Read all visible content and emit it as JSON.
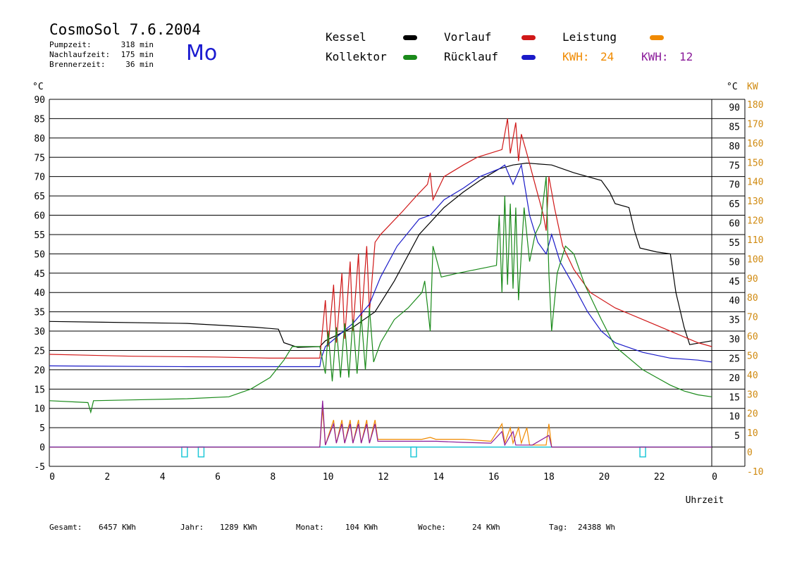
{
  "header": {
    "title": "CosmoSol 7.6.2004",
    "day": "Mo",
    "stats": [
      {
        "label": "Pumpzeit:",
        "value": "318 min"
      },
      {
        "label": "Nachlaufzeit:",
        "value": "175 min"
      },
      {
        "label": "Brennerzeit:",
        "value": "36 min"
      }
    ]
  },
  "legend": {
    "kessel": "Kessel",
    "vorlauf": "Vorlauf",
    "leistung": "Leistung",
    "kollektor": "Kollektor",
    "ruecklauf": "Rücklauf",
    "kwh_orange_label": "KWH:",
    "kwh_orange_value": "24",
    "kwh_purple_label": "KWH:",
    "kwh_purple_value": "12"
  },
  "totals": [
    {
      "label": "Gesamt:",
      "value": "6457 KWh"
    },
    {
      "label": "Jahr:",
      "value": "1289 KWh"
    },
    {
      "label": "Monat:",
      "value": "104 KWh"
    },
    {
      "label": "Woche:",
      "value": "24 KWh"
    },
    {
      "label": "Tag:",
      "value": "24388 Wh"
    }
  ],
  "colors": {
    "kessel": "#000000",
    "vorlauf": "#d01818",
    "ruecklauf": "#1a1ac8",
    "kollektor": "#1a8a1a",
    "leistung": "#f08a00",
    "leistung2": "#8a1a9a",
    "pump": "#20c8d8",
    "kw_axis": "#d08a10"
  },
  "chart_data": {
    "type": "line",
    "title": "CosmoSol 7.6.2004",
    "xlabel": "Uhrzeit",
    "ylabel_left": "°C",
    "ylabel_right": [
      "°C",
      "KW"
    ],
    "xlim": [
      0,
      24
    ],
    "ylim": [
      -5,
      90
    ],
    "y2lim": [
      -10,
      180
    ],
    "grid": true,
    "x_ticks": [
      "0",
      "2",
      "4",
      "6",
      "8",
      "10",
      "12",
      "14",
      "16",
      "18",
      "20",
      "22",
      "0"
    ],
    "y_ticks_left": [
      "90",
      "85",
      "80",
      "75",
      "70",
      "65",
      "60",
      "55",
      "50",
      "45",
      "40",
      "35",
      "30",
      "25",
      "20",
      "15",
      "10",
      "5",
      "0",
      "-5"
    ],
    "y_ticks_right_c": [
      "90",
      "85",
      "80",
      "75",
      "70",
      "65",
      "60",
      "55",
      "50",
      "45",
      "40",
      "35",
      "30",
      "25",
      "20",
      "15",
      "10",
      "5"
    ],
    "y_ticks_right_kw": [
      "180",
      "170",
      "160",
      "150",
      "140",
      "130",
      "120",
      "110",
      "100",
      "90",
      "80",
      "70",
      "60",
      "50",
      "40",
      "30",
      "20",
      "10",
      "0",
      "-10"
    ],
    "series": [
      {
        "name": "Kessel",
        "color": "#000000",
        "points": [
          [
            0,
            32.5
          ],
          [
            5,
            32
          ],
          [
            7.5,
            31
          ],
          [
            8.3,
            30.5
          ],
          [
            8.5,
            27
          ],
          [
            9,
            25.8
          ],
          [
            9.8,
            26
          ],
          [
            10,
            27.5
          ],
          [
            11,
            31
          ],
          [
            11.8,
            35
          ],
          [
            12.5,
            43
          ],
          [
            13.4,
            55
          ],
          [
            14.3,
            62
          ],
          [
            15,
            66
          ],
          [
            15.6,
            69
          ],
          [
            16.3,
            72
          ],
          [
            16.8,
            73
          ],
          [
            17.3,
            73.5
          ],
          [
            18.2,
            73
          ],
          [
            19,
            71
          ],
          [
            20,
            69
          ],
          [
            20.3,
            66
          ],
          [
            20.5,
            63
          ],
          [
            21,
            62
          ],
          [
            21.2,
            56
          ],
          [
            21.4,
            51.5
          ],
          [
            22,
            50.5
          ],
          [
            22.5,
            50
          ],
          [
            22.7,
            40
          ],
          [
            23,
            31
          ],
          [
            23.2,
            26.5
          ],
          [
            24,
            27.5
          ]
        ]
      },
      {
        "name": "Vorlauf",
        "color": "#d01818",
        "points": [
          [
            0,
            24
          ],
          [
            3,
            23.5
          ],
          [
            6,
            23.3
          ],
          [
            8,
            23
          ],
          [
            9.8,
            23
          ],
          [
            10,
            38
          ],
          [
            10.1,
            26
          ],
          [
            10.3,
            42
          ],
          [
            10.4,
            27
          ],
          [
            10.6,
            45
          ],
          [
            10.7,
            28
          ],
          [
            10.9,
            48
          ],
          [
            11,
            30
          ],
          [
            11.2,
            50
          ],
          [
            11.3,
            32
          ],
          [
            11.5,
            52
          ],
          [
            11.6,
            35
          ],
          [
            11.8,
            53
          ],
          [
            12,
            55
          ],
          [
            12.8,
            61
          ],
          [
            13.3,
            65
          ],
          [
            13.7,
            68
          ],
          [
            13.8,
            71
          ],
          [
            13.9,
            64
          ],
          [
            14.3,
            70
          ],
          [
            15,
            73
          ],
          [
            15.5,
            75
          ],
          [
            16.4,
            77
          ],
          [
            16.6,
            85
          ],
          [
            16.7,
            76
          ],
          [
            16.9,
            84
          ],
          [
            17,
            74
          ],
          [
            17.1,
            81
          ],
          [
            17.3,
            76
          ],
          [
            17.6,
            68
          ],
          [
            17.9,
            60
          ],
          [
            18,
            56
          ],
          [
            18.1,
            70
          ],
          [
            18.3,
            62
          ],
          [
            18.6,
            52
          ],
          [
            19,
            46
          ],
          [
            19.6,
            40
          ],
          [
            20.5,
            36
          ],
          [
            21.5,
            33
          ],
          [
            22.5,
            30
          ],
          [
            23.5,
            27
          ],
          [
            24,
            26
          ]
        ]
      },
      {
        "name": "Rücklauf",
        "color": "#1a1ac8",
        "points": [
          [
            0,
            21
          ],
          [
            5,
            20.8
          ],
          [
            9.8,
            20.8
          ],
          [
            9.85,
            23
          ],
          [
            10,
            26
          ],
          [
            10.5,
            29
          ],
          [
            11,
            32
          ],
          [
            11.6,
            37
          ],
          [
            12,
            44
          ],
          [
            12.6,
            52
          ],
          [
            13.4,
            59
          ],
          [
            13.8,
            60
          ],
          [
            14.3,
            64
          ],
          [
            15,
            67
          ],
          [
            15.6,
            70
          ],
          [
            16.3,
            72
          ],
          [
            16.5,
            73
          ],
          [
            16.8,
            68
          ],
          [
            17.1,
            73
          ],
          [
            17.4,
            60
          ],
          [
            17.7,
            53
          ],
          [
            18,
            50
          ],
          [
            18.2,
            55
          ],
          [
            18.5,
            48
          ],
          [
            18.9,
            43
          ],
          [
            19.5,
            35
          ],
          [
            20,
            30
          ],
          [
            20.5,
            27
          ],
          [
            21.5,
            24.5
          ],
          [
            22.5,
            23
          ],
          [
            23.5,
            22.5
          ],
          [
            24,
            22
          ]
        ]
      },
      {
        "name": "Kollektor",
        "color": "#1a8a1a",
        "points": [
          [
            0,
            12
          ],
          [
            1.4,
            11.5
          ],
          [
            1.5,
            9
          ],
          [
            1.6,
            12
          ],
          [
            3,
            12.2
          ],
          [
            5,
            12.5
          ],
          [
            6.5,
            13
          ],
          [
            7.3,
            15
          ],
          [
            8,
            18
          ],
          [
            8.5,
            22.5
          ],
          [
            8.8,
            26
          ],
          [
            9.8,
            26
          ],
          [
            10,
            19
          ],
          [
            10.1,
            30
          ],
          [
            10.25,
            17
          ],
          [
            10.4,
            31
          ],
          [
            10.55,
            18
          ],
          [
            10.7,
            32
          ],
          [
            10.85,
            18
          ],
          [
            11,
            33
          ],
          [
            11.15,
            19
          ],
          [
            11.3,
            34
          ],
          [
            11.45,
            20
          ],
          [
            11.6,
            36
          ],
          [
            11.75,
            22
          ],
          [
            12,
            27
          ],
          [
            12.5,
            33
          ],
          [
            13,
            36
          ],
          [
            13.5,
            40
          ],
          [
            13.6,
            43
          ],
          [
            13.8,
            30
          ],
          [
            13.9,
            52
          ],
          [
            14.2,
            44
          ],
          [
            14.8,
            45
          ],
          [
            15.5,
            46
          ],
          [
            16.2,
            47
          ],
          [
            16.3,
            60
          ],
          [
            16.4,
            40
          ],
          [
            16.5,
            65
          ],
          [
            16.6,
            42
          ],
          [
            16.7,
            63
          ],
          [
            16.8,
            41
          ],
          [
            16.9,
            62
          ],
          [
            17,
            38
          ],
          [
            17.2,
            62
          ],
          [
            17.4,
            48
          ],
          [
            17.6,
            55
          ],
          [
            17.8,
            58
          ],
          [
            18,
            70
          ],
          [
            18.1,
            45
          ],
          [
            18.2,
            30
          ],
          [
            18.4,
            45
          ],
          [
            18.7,
            52
          ],
          [
            19,
            50
          ],
          [
            19.4,
            42
          ],
          [
            20,
            33
          ],
          [
            20.5,
            26
          ],
          [
            21,
            23
          ],
          [
            21.5,
            20
          ],
          [
            22,
            18
          ],
          [
            22.5,
            16
          ],
          [
            23,
            14.5
          ],
          [
            23.5,
            13.5
          ],
          [
            24,
            13
          ]
        ]
      },
      {
        "name": "Leistung",
        "color": "#f08a00",
        "points": [
          [
            0,
            0
          ],
          [
            9.8,
            0
          ],
          [
            9.9,
            10
          ],
          [
            10,
            0.5
          ],
          [
            10.3,
            7
          ],
          [
            10.4,
            1
          ],
          [
            10.6,
            7
          ],
          [
            10.7,
            1
          ],
          [
            10.9,
            7
          ],
          [
            11,
            1
          ],
          [
            11.2,
            7
          ],
          [
            11.3,
            1
          ],
          [
            11.5,
            7
          ],
          [
            11.6,
            1
          ],
          [
            11.8,
            7
          ],
          [
            11.9,
            2
          ],
          [
            12,
            2
          ],
          [
            13.5,
            2
          ],
          [
            13.8,
            2.5
          ],
          [
            14,
            2
          ],
          [
            15,
            2
          ],
          [
            16,
            1.5
          ],
          [
            16.4,
            6
          ],
          [
            16.5,
            1
          ],
          [
            16.7,
            5
          ],
          [
            16.8,
            1
          ],
          [
            17,
            5
          ],
          [
            17.1,
            1
          ],
          [
            17.3,
            5
          ],
          [
            17.4,
            0.5
          ],
          [
            18,
            0.5
          ],
          [
            18.1,
            6
          ],
          [
            18.2,
            0
          ],
          [
            24,
            0
          ]
        ]
      },
      {
        "name": "Leistung2",
        "color": "#8a1a9a",
        "points": [
          [
            0,
            0
          ],
          [
            9.8,
            0
          ],
          [
            9.9,
            12
          ],
          [
            10,
            0.5
          ],
          [
            10.3,
            6
          ],
          [
            10.4,
            1
          ],
          [
            10.6,
            6
          ],
          [
            10.7,
            1
          ],
          [
            10.9,
            6
          ],
          [
            11,
            1
          ],
          [
            11.2,
            6
          ],
          [
            11.3,
            1
          ],
          [
            11.5,
            6
          ],
          [
            11.6,
            1
          ],
          [
            11.8,
            6
          ],
          [
            11.9,
            1.5
          ],
          [
            12,
            1.5
          ],
          [
            14,
            1.5
          ],
          [
            15,
            1.2
          ],
          [
            16,
            1
          ],
          [
            16.4,
            4
          ],
          [
            16.5,
            0.5
          ],
          [
            16.8,
            4
          ],
          [
            16.9,
            0.5
          ],
          [
            17.5,
            0.5
          ],
          [
            18.1,
            3
          ],
          [
            18.2,
            0
          ],
          [
            24,
            0
          ]
        ]
      }
    ],
    "pump_markers": [
      4.9,
      5.5,
      13.2,
      21.5
    ]
  }
}
